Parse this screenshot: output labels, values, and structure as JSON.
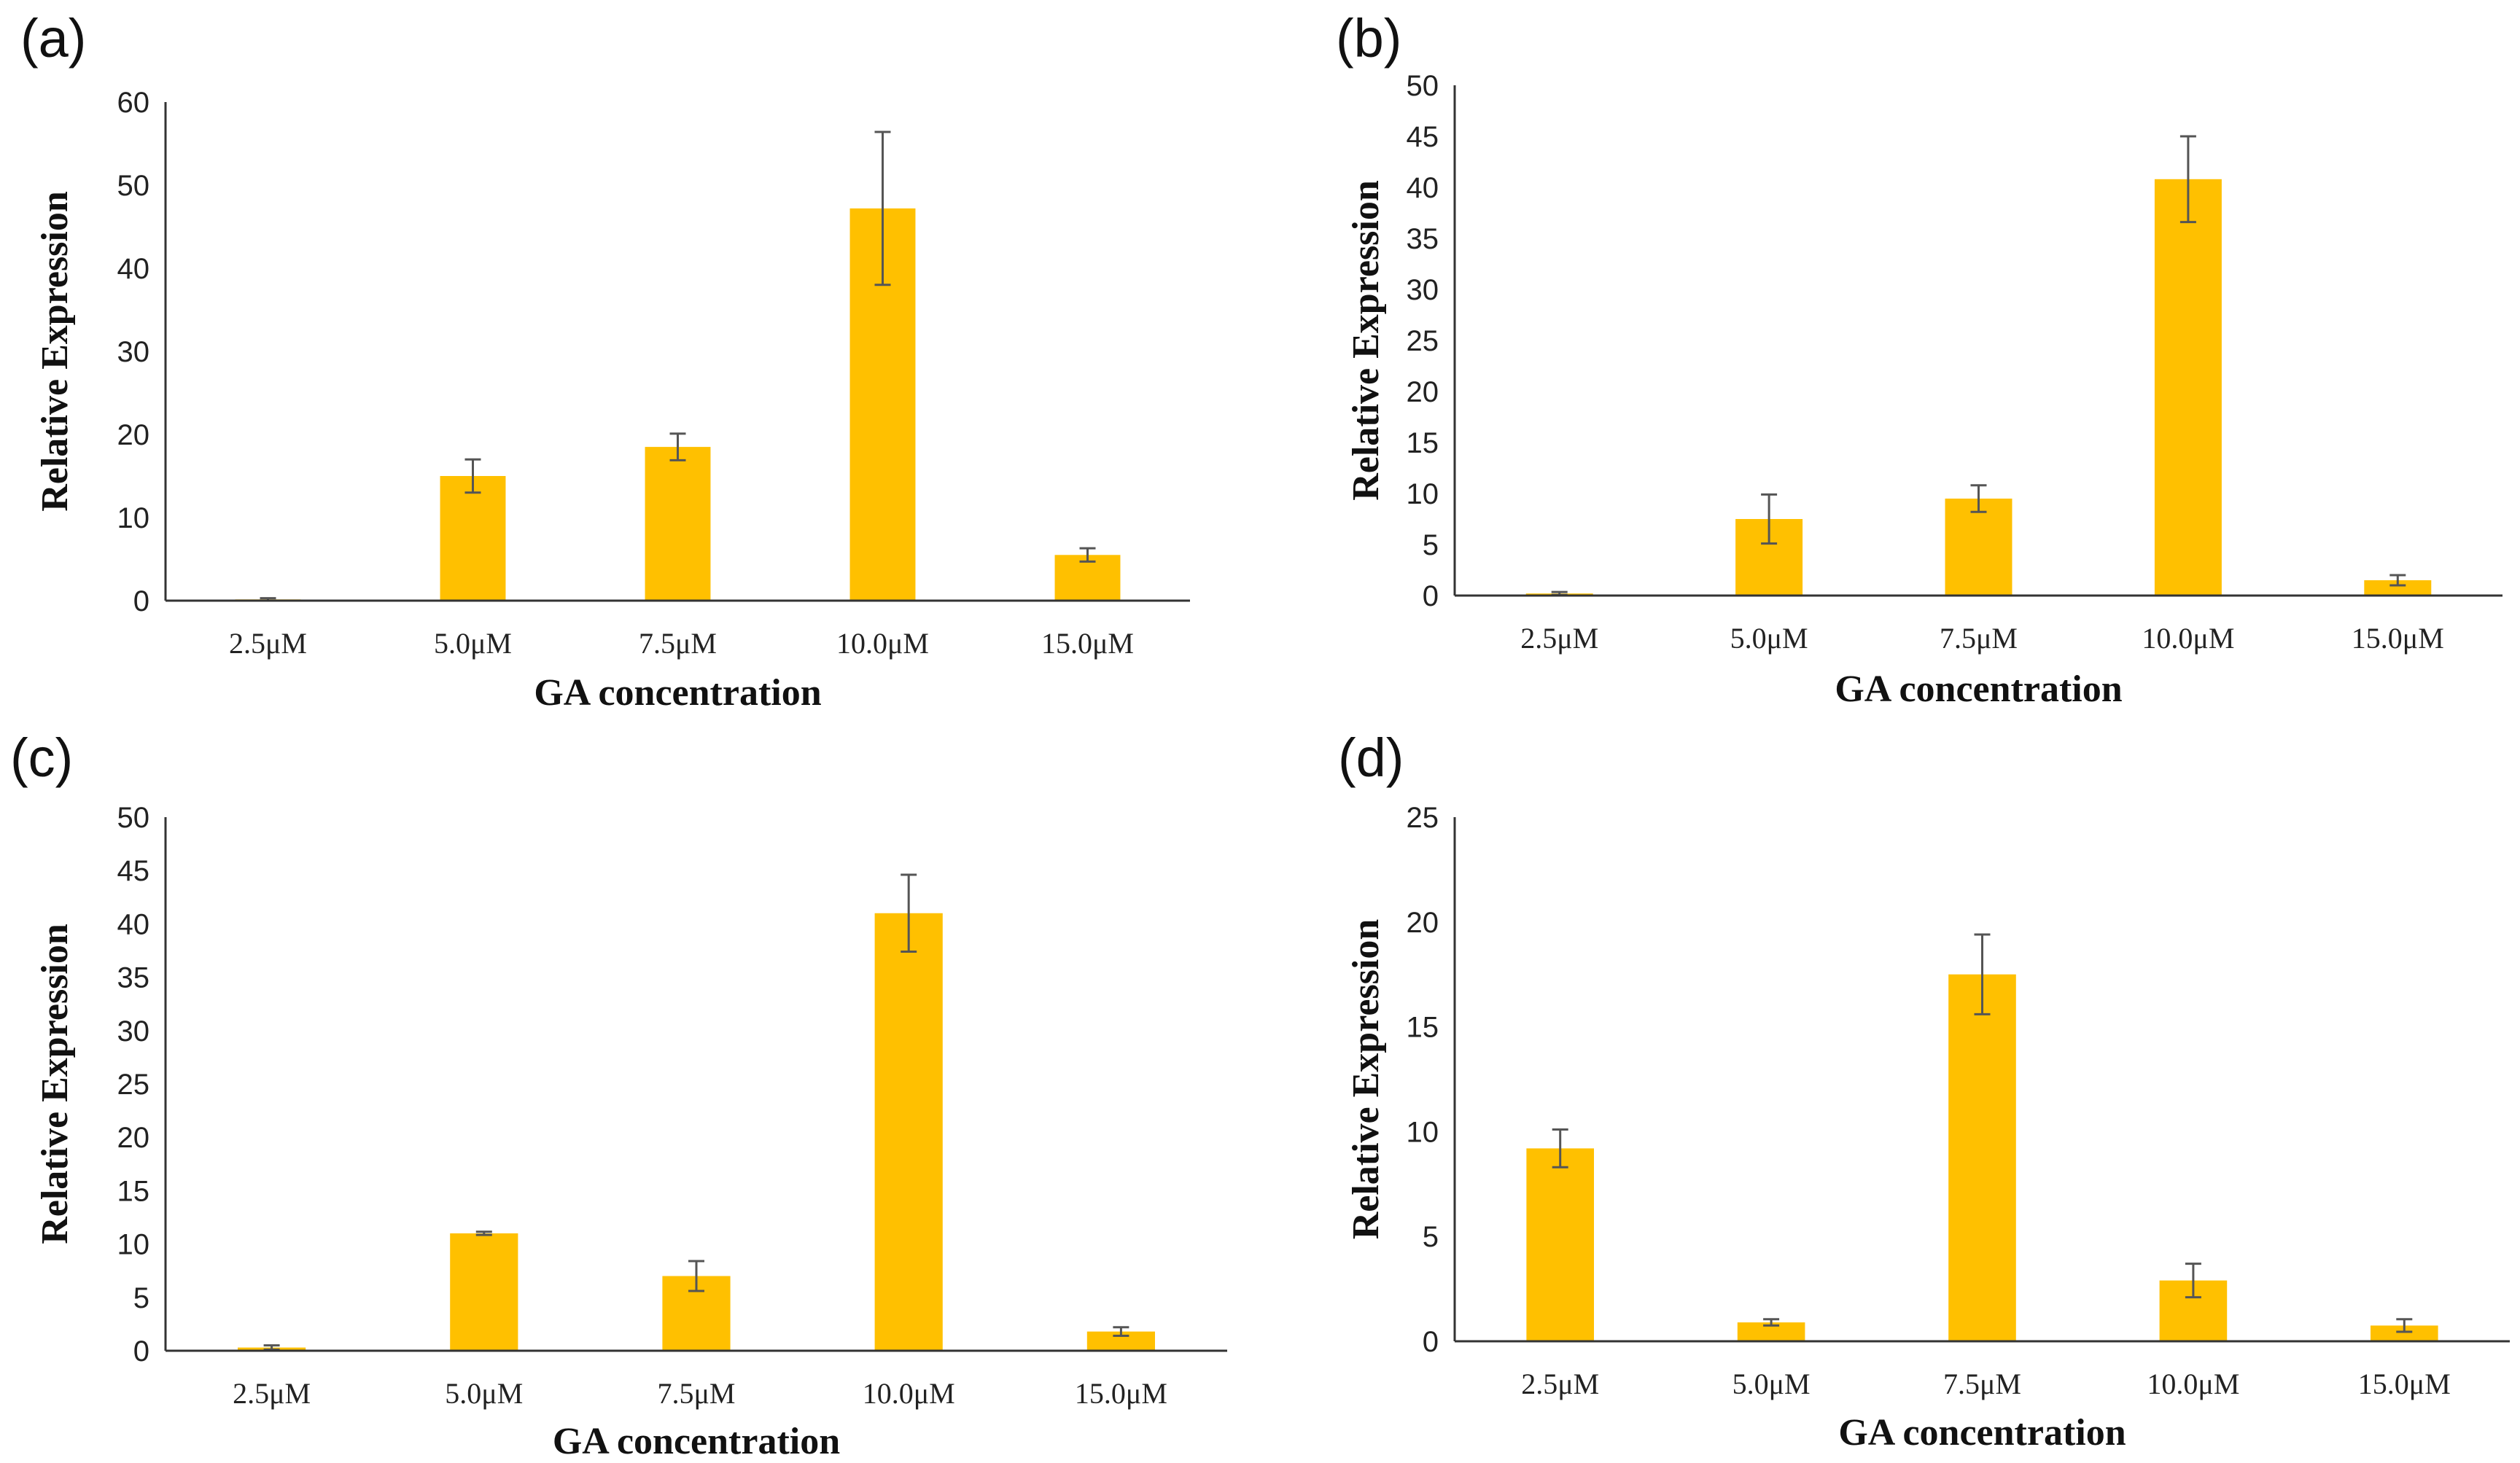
{
  "colors": {
    "bar": "#FFC000",
    "axis": "#333333",
    "error_bar": "#555555"
  },
  "chart_data": [
    {
      "panel": "(a)",
      "type": "bar",
      "categories": [
        "2.5μM",
        "5.0μM",
        "7.5μM",
        "10.0μM",
        "15.0μM"
      ],
      "values": [
        0.15,
        15.0,
        18.5,
        47.2,
        5.5
      ],
      "errors": [
        0.15,
        2.0,
        1.6,
        9.2,
        0.8
      ],
      "xlabel": "GA concentration",
      "ylabel": "Relative Expression",
      "ylim": [
        0,
        60
      ],
      "yticks": [
        "0",
        "10",
        "20",
        "30",
        "40",
        "50",
        "60"
      ]
    },
    {
      "panel": "(b)",
      "type": "bar",
      "categories": [
        "2.5μM",
        "5.0μM",
        "7.5μM",
        "10.0μM",
        "15.0μM"
      ],
      "values": [
        0.2,
        7.5,
        9.5,
        40.8,
        1.5
      ],
      "errors": [
        0.15,
        2.4,
        1.3,
        4.2,
        0.5
      ],
      "xlabel": "GA concentration",
      "ylabel": "Relative Expression",
      "ylim": [
        0,
        50
      ],
      "yticks": [
        "0",
        "5",
        "10",
        "15",
        "20",
        "25",
        "30",
        "35",
        "40",
        "45",
        "50"
      ]
    },
    {
      "panel": "(c)",
      "type": "bar",
      "categories": [
        "2.5μM",
        "5.0μM",
        "7.5μM",
        "10.0μM",
        "15.0μM"
      ],
      "values": [
        0.3,
        11.0,
        7.0,
        41.0,
        1.8
      ],
      "errors": [
        0.2,
        0.15,
        1.4,
        3.6,
        0.4
      ],
      "xlabel": "GA concentration",
      "ylabel": "Relative Expression",
      "ylim": [
        0,
        50
      ],
      "yticks": [
        "0",
        "5",
        "10",
        "15",
        "20",
        "25",
        "30",
        "35",
        "40",
        "45",
        "50"
      ]
    },
    {
      "panel": "(d)",
      "type": "bar",
      "categories": [
        "2.5μM",
        "5.0μM",
        "7.5μM",
        "10.0μM",
        "15.0μM"
      ],
      "values": [
        9.2,
        0.9,
        17.5,
        2.9,
        0.75
      ],
      "errors": [
        0.9,
        0.15,
        1.9,
        0.8,
        0.3
      ],
      "xlabel": "GA concentration",
      "ylabel": "Relative Expression",
      "ylim": [
        0,
        25
      ],
      "yticks": [
        "0",
        "5",
        "10",
        "15",
        "20",
        "25"
      ]
    }
  ]
}
